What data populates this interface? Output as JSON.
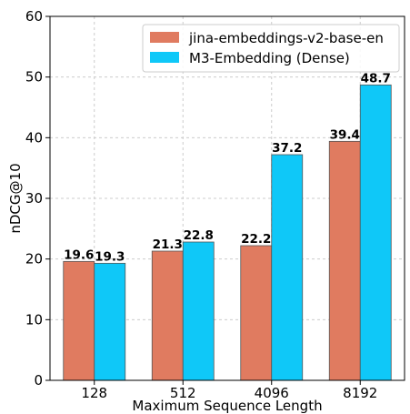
{
  "chart_data": {
    "type": "bar",
    "categories": [
      "128",
      "512",
      "4096",
      "8192"
    ],
    "series": [
      {
        "name": "jina-embeddings-v2-base-en",
        "values": [
          19.6,
          21.3,
          22.2,
          39.4
        ],
        "color": "#e07b60"
      },
      {
        "name": "M3-Embedding (Dense)",
        "values": [
          19.3,
          22.8,
          37.2,
          48.7
        ],
        "color": "#0fc8f8"
      }
    ],
    "xlabel": "Maximum Sequence Length",
    "ylabel": "nDCG@10",
    "ylim": [
      0,
      60
    ],
    "yticks": [
      0,
      10,
      20,
      30,
      40,
      50,
      60
    ],
    "grid": true,
    "legend_position": "top-right"
  }
}
